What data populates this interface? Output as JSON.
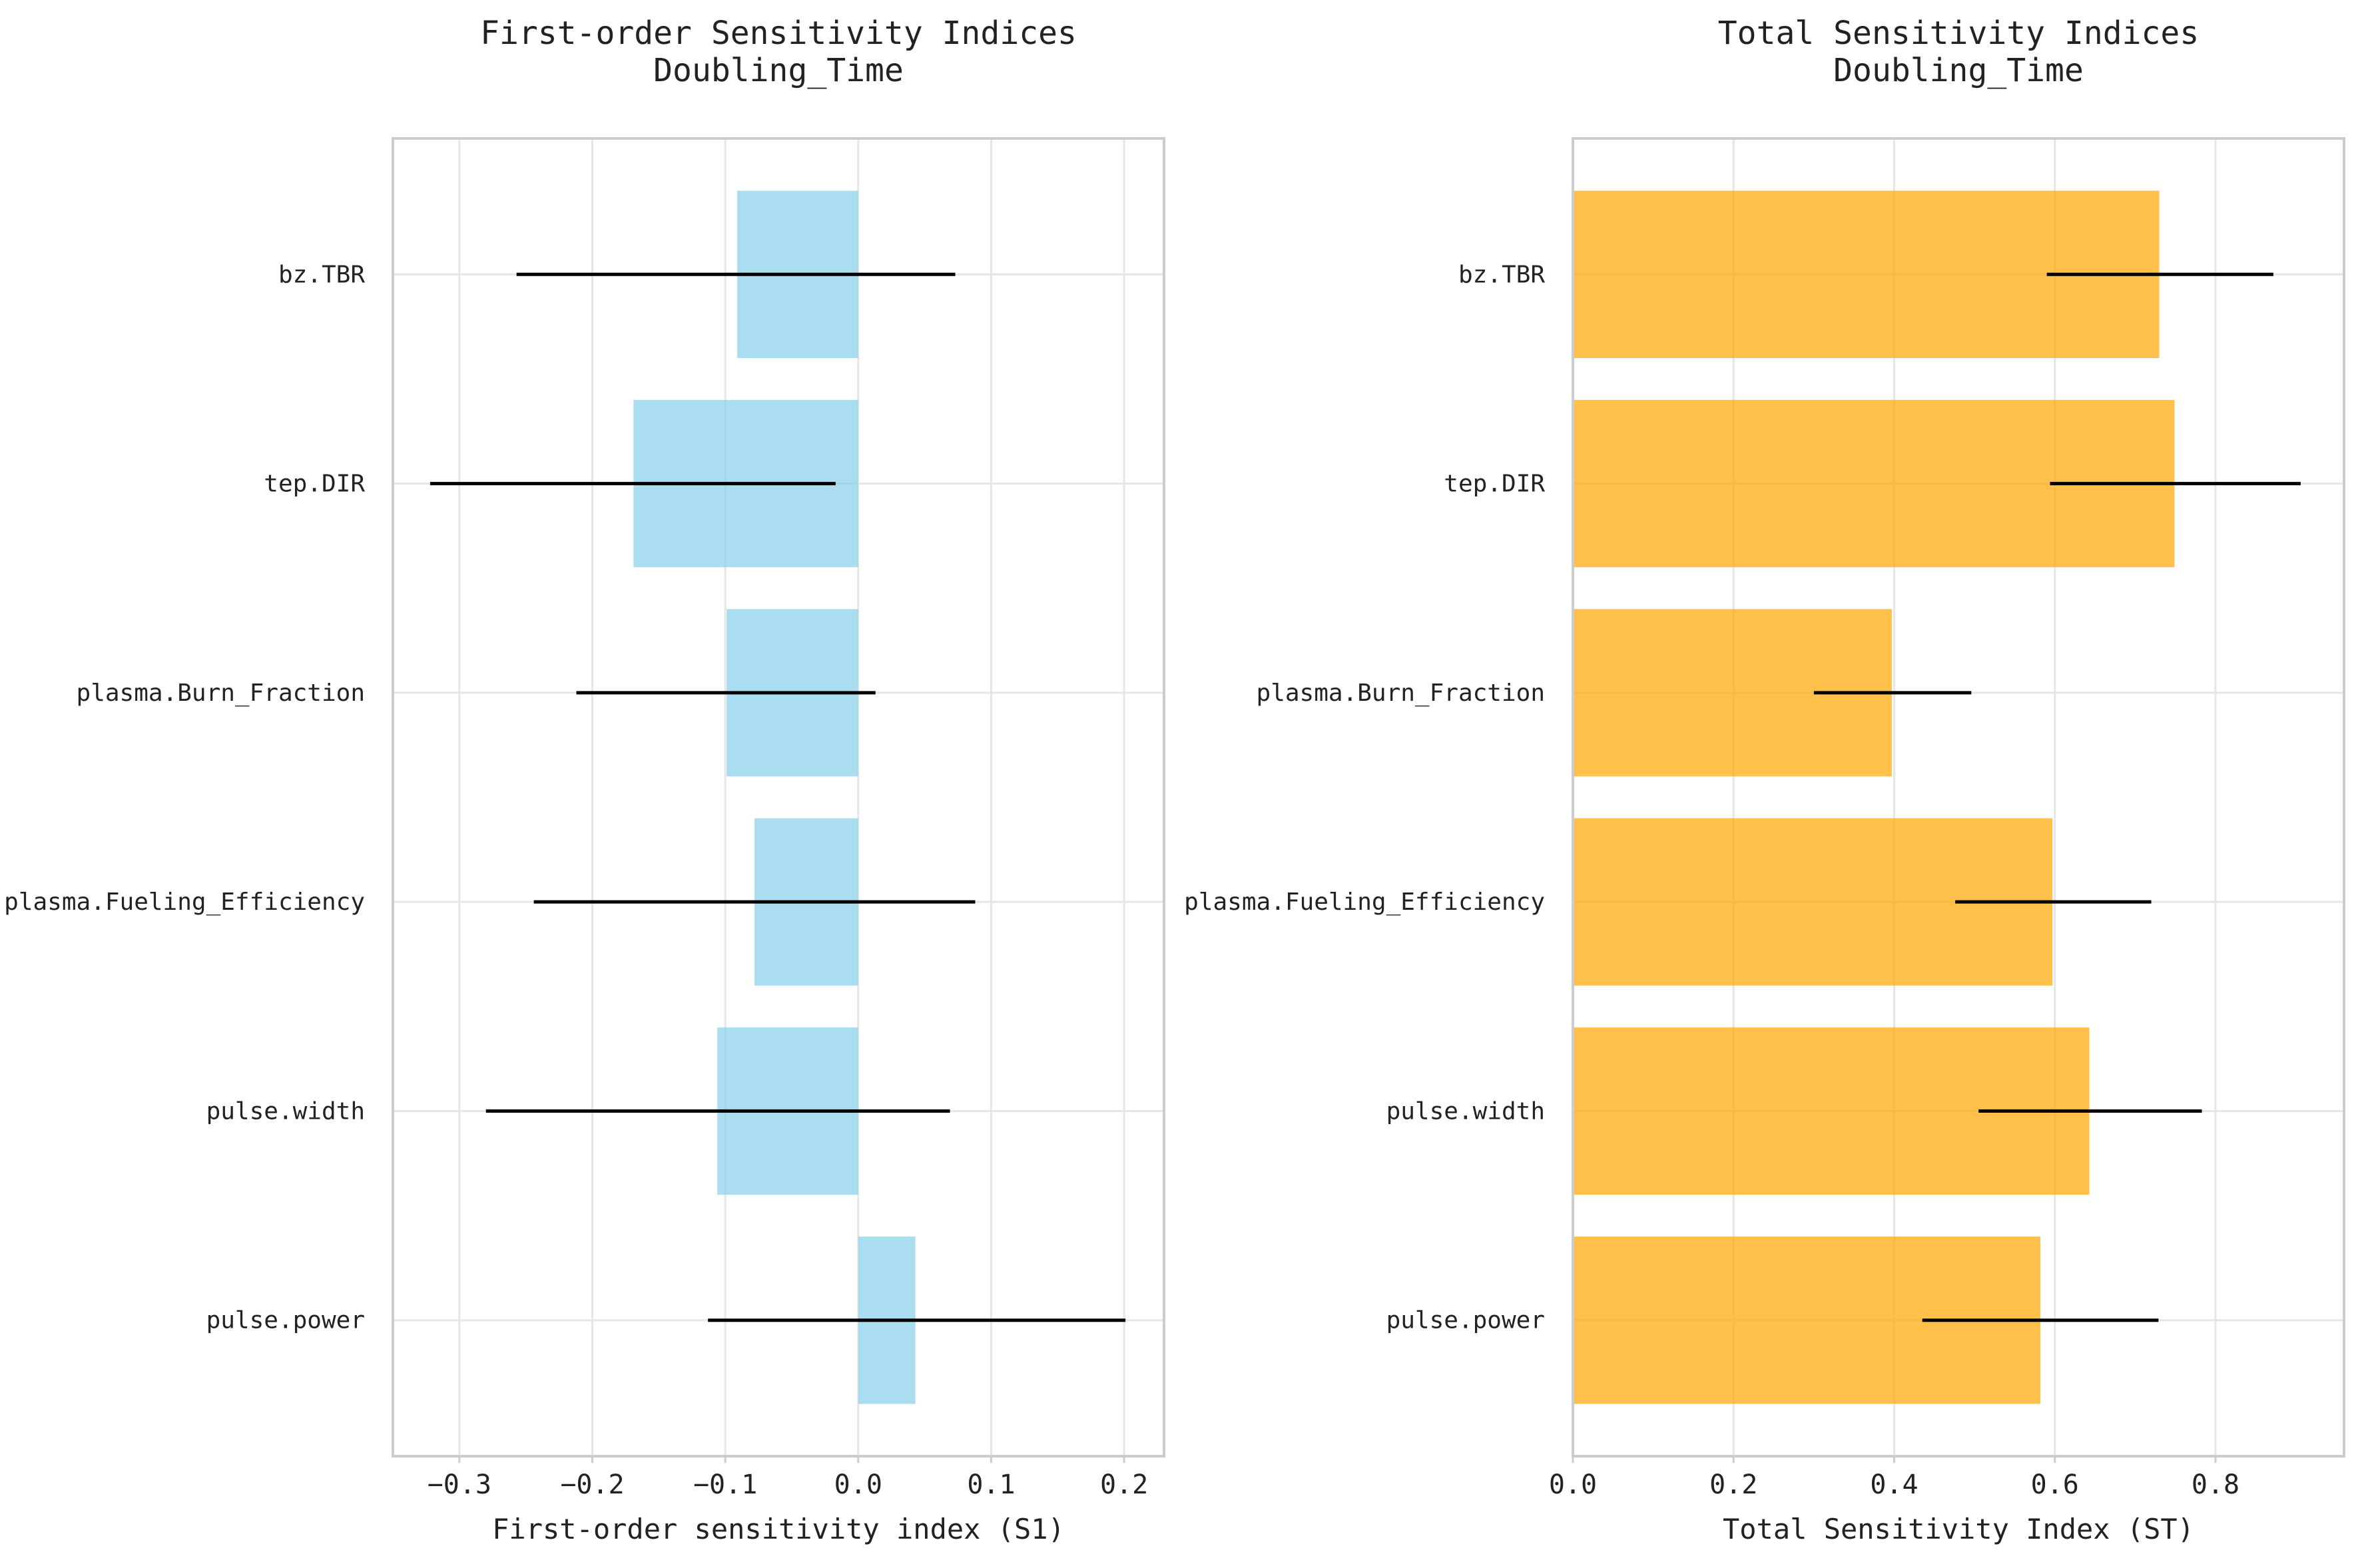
{
  "chart_data": [
    {
      "type": "bar",
      "orientation": "horizontal",
      "title": "First-order Sensitivity Indices",
      "subtitle": "Doubling_Time",
      "xlabel": "First-order sensitivity index (S1)",
      "ylabel": "",
      "categories": [
        "bz.TBR",
        "tep.DIR",
        "plasma.Burn_Fraction",
        "plasma.Fueling_Efficiency",
        "pulse.width",
        "pulse.power"
      ],
      "values": [
        -0.091,
        -0.169,
        -0.099,
        -0.078,
        -0.106,
        0.043
      ],
      "error_low": [
        -0.257,
        -0.322,
        -0.212,
        -0.244,
        -0.28,
        -0.113
      ],
      "error_high": [
        0.073,
        -0.017,
        0.013,
        0.088,
        0.069,
        0.201
      ],
      "xlim": [
        -0.35,
        0.23
      ],
      "xticks": [
        -0.3,
        -0.2,
        -0.1,
        0.0,
        0.1,
        0.2
      ],
      "xtick_labels": [
        "−0.3",
        "−0.2",
        "−0.1",
        "0.0",
        "0.1",
        "0.2"
      ],
      "grid": true,
      "bar_color": "#87CEEB"
    },
    {
      "type": "bar",
      "orientation": "horizontal",
      "title": "Total Sensitivity Indices",
      "subtitle": "Doubling_Time",
      "xlabel": "Total Sensitivity Index (ST)",
      "ylabel": "",
      "categories": [
        "bz.TBR",
        "tep.DIR",
        "plasma.Burn_Fraction",
        "plasma.Fueling_Efficiency",
        "pulse.width",
        "pulse.power"
      ],
      "values": [
        0.73,
        0.749,
        0.397,
        0.597,
        0.643,
        0.582
      ],
      "error_low": [
        0.59,
        0.594,
        0.3,
        0.476,
        0.505,
        0.435
      ],
      "error_high": [
        0.872,
        0.906,
        0.496,
        0.72,
        0.783,
        0.729
      ],
      "xlim": [
        0.0,
        0.96
      ],
      "xticks": [
        0.0,
        0.2,
        0.4,
        0.6,
        0.8
      ],
      "xtick_labels": [
        "0.0",
        "0.2",
        "0.4",
        "0.6",
        "0.8"
      ],
      "grid": true,
      "bar_color": "#FFA500"
    }
  ]
}
